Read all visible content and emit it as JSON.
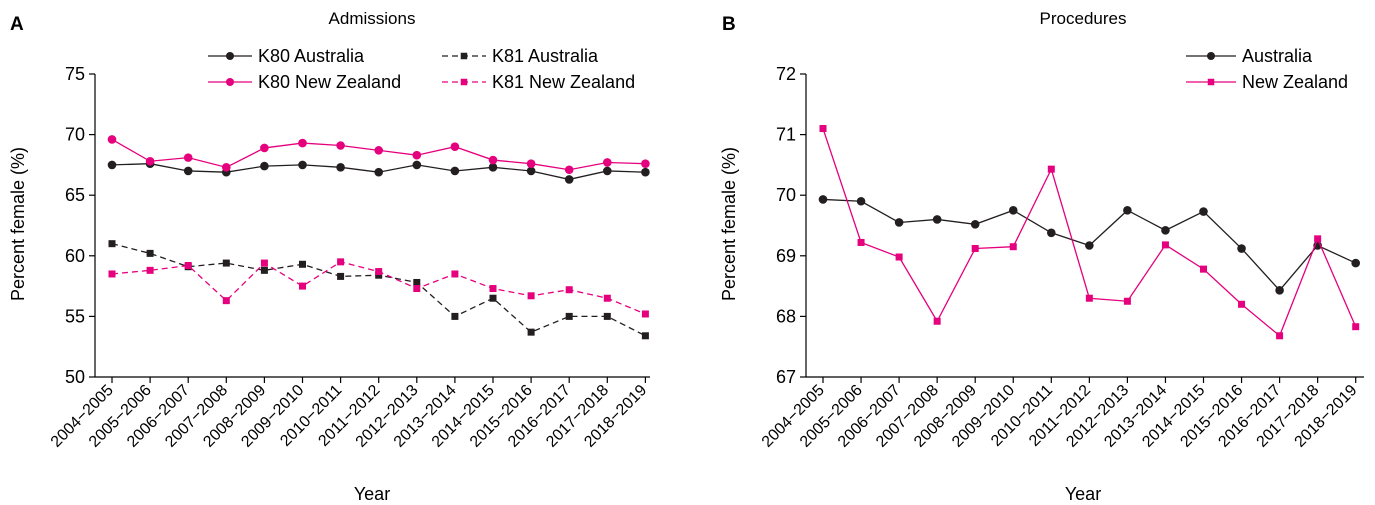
{
  "chart_data": [
    {
      "panel": "A",
      "type": "line",
      "title": "Admissions",
      "xlabel": "Year",
      "ylabel": "Percent female (%)",
      "ylim": [
        50,
        75
      ],
      "yticks": [
        "50",
        "55",
        "60",
        "65",
        "70",
        "75"
      ],
      "categories": [
        "2004−2005",
        "2005−2006",
        "2006−2007",
        "2007−2008",
        "2008−2009",
        "2009−2010",
        "2010−2011",
        "2011−2012",
        "2012−2013",
        "2013−2014",
        "2014−2015",
        "2015−2016",
        "2016−2017",
        "2017−2018",
        "2018−2019"
      ],
      "legend": "top, two columns",
      "grid": false,
      "series": [
        {
          "name": "K80 Australia",
          "color": "#231f20",
          "marker": "circle",
          "dash": "solid",
          "values": [
            67.5,
            67.6,
            67.0,
            66.9,
            67.4,
            67.5,
            67.3,
            66.9,
            67.5,
            67.0,
            67.3,
            67.0,
            66.3,
            67.0,
            66.9
          ]
        },
        {
          "name": "K80 New Zealand",
          "color": "#e5007e",
          "marker": "circle",
          "dash": "solid",
          "values": [
            69.6,
            67.8,
            68.1,
            67.3,
            68.9,
            69.3,
            69.1,
            68.7,
            68.3,
            69.0,
            67.9,
            67.6,
            67.1,
            67.7,
            67.6
          ]
        },
        {
          "name": "K81 Australia",
          "color": "#231f20",
          "marker": "square",
          "dash": "dashed",
          "values": [
            61.0,
            60.2,
            59.1,
            59.4,
            58.8,
            59.3,
            58.3,
            58.4,
            57.8,
            55.0,
            56.5,
            53.7,
            55.0,
            55.0,
            53.4
          ]
        },
        {
          "name": "K81 New Zealand",
          "color": "#e5007e",
          "marker": "square",
          "dash": "dashed",
          "values": [
            58.5,
            58.8,
            59.2,
            56.3,
            59.4,
            57.5,
            59.5,
            58.7,
            57.3,
            58.5,
            57.3,
            56.7,
            57.2,
            56.5,
            55.2
          ]
        }
      ]
    },
    {
      "panel": "B",
      "type": "line",
      "title": "Procedures",
      "xlabel": "Year",
      "ylabel": "Percent female (%)",
      "ylim": [
        67,
        72
      ],
      "yticks": [
        "67",
        "68",
        "69",
        "70",
        "71",
        "72"
      ],
      "categories": [
        "2004−2005",
        "2005−2006",
        "2006−2007",
        "2007−2008",
        "2008−2009",
        "2009−2010",
        "2010−2011",
        "2011−2012",
        "2012−2013",
        "2013−2014",
        "2014−2015",
        "2015−2016",
        "2016−2017",
        "2017−2018",
        "2018−2019"
      ],
      "legend": "top-right",
      "grid": false,
      "series": [
        {
          "name": "Australia",
          "color": "#231f20",
          "marker": "circle",
          "dash": "solid",
          "values": [
            69.93,
            69.9,
            69.55,
            69.6,
            69.52,
            69.75,
            69.38,
            69.17,
            69.75,
            69.42,
            69.73,
            69.12,
            68.43,
            69.17,
            68.88
          ]
        },
        {
          "name": "New Zealand",
          "color": "#e5007e",
          "marker": "square",
          "dash": "solid",
          "values": [
            71.1,
            69.22,
            68.98,
            67.92,
            69.12,
            69.15,
            70.43,
            68.3,
            68.25,
            69.18,
            68.78,
            68.2,
            67.68,
            69.28,
            67.83
          ]
        }
      ]
    }
  ]
}
